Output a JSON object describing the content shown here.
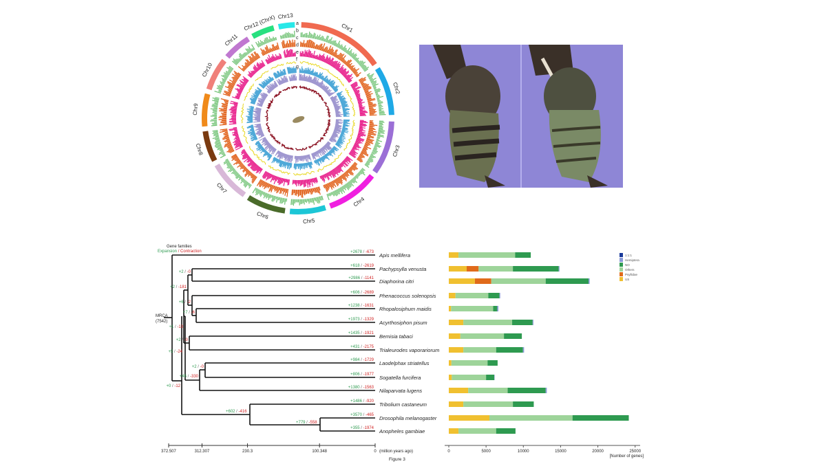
{
  "circos": {
    "chromosomes": [
      "Chr1",
      "Chr2",
      "Chr3",
      "Chr4",
      "Chr5",
      "Chr6",
      "Chr7",
      "Chr8",
      "Chr9",
      "Chr10",
      "Chr11",
      "Chr12 (ChrX)",
      "Chr13"
    ],
    "chromosome_colors": [
      "#f06a50",
      "#1fa9e6",
      "#9b6fd6",
      "#f01fe0",
      "#1cc6d6",
      "#4a6b2a",
      "#d8b8d8",
      "#7a3a10",
      "#f08a1a",
      "#f0807a",
      "#c078d0",
      "#28e080",
      "#28e8e8"
    ],
    "track_letters": [
      "a",
      "b",
      "c",
      "d",
      "e",
      "f",
      "g"
    ],
    "track_colors": [
      "#6cc070",
      "#e05a10",
      "#e8208c",
      "#e8d820",
      "#4ea8d8",
      "#a098d0",
      "#8a1020"
    ]
  },
  "photo": {
    "background": "#8e86d6"
  },
  "tree": {
    "header": "Gene families",
    "legend_expansion": "Expansion",
    "legend_sep": " / ",
    "legend_contraction": "Contraction",
    "root_label": "MRCA",
    "root_count": "(7542)",
    "leaves": [
      {
        "name": "Apis mellifera",
        "exp": "+2678",
        "con": "-673"
      },
      {
        "name": "Pachypsylla venusta",
        "exp": "+618",
        "con": "-2619"
      },
      {
        "name": "Diaphorina citri",
        "exp": "+2986",
        "con": "-1141"
      },
      {
        "name": "Phenacoccus solenopsis",
        "exp": "+606",
        "con": "-2689"
      },
      {
        "name": "Rhopalosiphum maidis",
        "exp": "+1238",
        "con": "-1631"
      },
      {
        "name": "Acyrthosiphon pisum",
        "exp": "+1973",
        "con": "-1329"
      },
      {
        "name": "Bemisia tabaci",
        "exp": "+1435",
        "con": "-1921"
      },
      {
        "name": "Trialeurodes vaporariorum",
        "exp": "+431",
        "con": "-2175"
      },
      {
        "name": "Laodelphax striatellus",
        "exp": "+984",
        "con": "-1729"
      },
      {
        "name": "Sogatella furcifera",
        "exp": "+806",
        "con": "-1977"
      },
      {
        "name": "Nilaparvata lugens",
        "exp": "+1380",
        "con": "-1563"
      },
      {
        "name": "Tribolium castaneum",
        "exp": "+1486",
        "con": "-920"
      },
      {
        "name": "Drosophila melanogaster",
        "exp": "+3570",
        "con": "-465"
      },
      {
        "name": "Anopheles gambiae",
        "exp": "+355",
        "con": "-1974"
      }
    ],
    "internal": [
      {
        "exp": "+2",
        "con": "-0"
      },
      {
        "exp": "+2",
        "con": "-181"
      },
      {
        "exp": "+6",
        "con": "-2"
      },
      {
        "exp": "+7",
        "con": "-6"
      },
      {
        "exp": "+1",
        "con": "-13"
      },
      {
        "exp": "+2",
        "con": "-0"
      },
      {
        "exp": "+5",
        "con": "-24"
      },
      {
        "exp": "+2",
        "con": "-0"
      },
      {
        "exp": "+45",
        "con": "-330"
      },
      {
        "exp": "+0",
        "con": "-12"
      },
      {
        "exp": "+602",
        "con": "-416"
      },
      {
        "exp": "+779",
        "con": "-558"
      }
    ],
    "axis_ticks": [
      "372.507",
      "312.307",
      "230.3",
      "100.348",
      "0"
    ],
    "axis_tick_values": [
      372.507,
      312.307,
      230.3,
      100.348,
      0
    ],
    "axis_unit": "(million years ago)",
    "expansion_color": "#2e9a50",
    "contraction_color": "#d02020"
  },
  "figure_caption": "Figure 3",
  "chart_data": {
    "type": "bar",
    "orientation": "horizontal",
    "stacked": true,
    "categories": [
      "Apis mellifera",
      "Pachypsylla venusta",
      "Diaphorina citri",
      "Phenacoccus solenopsis",
      "Rhopalosiphum maidis",
      "Acyrthosiphon pisum",
      "Bemisia tabaci",
      "Trialeurodes vaporariorum",
      "Laodelphax striatellus",
      "Sogatella furcifera",
      "Nilaparvata lugens",
      "Tribolium castaneum",
      "Drosophila melanogaster",
      "Anopheles gambiae"
    ],
    "series": [
      {
        "name": "US",
        "color": "#f0c030",
        "values": [
          1300,
          2400,
          3500,
          900,
          300,
          1950,
          1550,
          1950,
          350,
          400,
          2600,
          1950,
          5450,
          1300
        ]
      },
      {
        "name": "Psyllidae",
        "color": "#e06a1a",
        "values": [
          0,
          1600,
          2200,
          0,
          0,
          0,
          0,
          0,
          0,
          0,
          0,
          0,
          0,
          0
        ]
      },
      {
        "name": "Others",
        "color": "#9ed49a",
        "values": [
          7600,
          4600,
          7300,
          4400,
          5650,
          6550,
          5850,
          4400,
          4850,
          4600,
          5300,
          6650,
          11150,
          5050
        ]
      },
      {
        "name": "NO",
        "color": "#2e9a50",
        "values": [
          2100,
          6150,
          5750,
          1500,
          550,
          2750,
          2400,
          3600,
          1350,
          1100,
          5100,
          2800,
          7550,
          2600
        ]
      },
      {
        "name": "Hemiptera",
        "color": "#8a9ad8",
        "values": [
          0,
          100,
          150,
          100,
          150,
          100,
          0,
          150,
          0,
          50,
          150,
          0,
          0,
          0
        ]
      },
      {
        "name": "1:1:1",
        "color": "#1a3a9a",
        "values": [
          0,
          0,
          0,
          0,
          0,
          0,
          0,
          0,
          0,
          0,
          0,
          0,
          0,
          0
        ]
      }
    ],
    "legend_order": [
      "1:1:1",
      "Hemiptera",
      "NO",
      "Others",
      "Psyllidae",
      "US"
    ],
    "xlabel": "[Number of genes]",
    "xlim": [
      0,
      25000
    ],
    "xticks": [
      0,
      5000,
      10000,
      15000,
      20000,
      25000
    ],
    "xtick_labels": [
      "0",
      "5000",
      "10000",
      "15000",
      "20000",
      "25000"
    ],
    "grid": false,
    "legend_position": "top-right"
  }
}
